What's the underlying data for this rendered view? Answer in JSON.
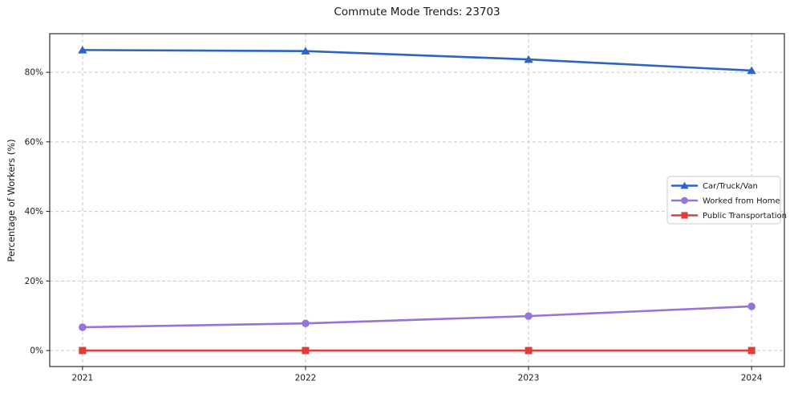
{
  "chart_data": {
    "type": "line",
    "title": "Commute Mode Trends: 23703",
    "xlabel": "",
    "ylabel": "Percentage of Workers (%)",
    "x": [
      2021,
      2022,
      2023,
      2024
    ],
    "x_tick_labels": [
      "2021",
      "2022",
      "2023",
      "2024"
    ],
    "y_ticks": [
      0,
      20,
      40,
      60,
      80
    ],
    "y_tick_labels": [
      "0%",
      "20%",
      "40%",
      "60%",
      "80%"
    ],
    "xlim": [
      2020.853,
      2024.147
    ],
    "ylim": [
      -4.6,
      91.1
    ],
    "grid": true,
    "grid_style": "dashed",
    "legend_position": "center-right",
    "background_color": "#ffffff",
    "spine_color": "#1a1a1a",
    "grid_color": "#cacaca",
    "series": [
      {
        "name": "Car/Truck/Van",
        "color": "#2c65c3",
        "marker": "triangle",
        "values": [
          86.4,
          86.1,
          83.7,
          80.5
        ]
      },
      {
        "name": "Worked from Home",
        "color": "#9674d9",
        "marker": "circle",
        "values": [
          6.7,
          7.8,
          9.9,
          12.7
        ]
      },
      {
        "name": "Public Transportation",
        "color": "#e33c3c",
        "marker": "square",
        "values": [
          0.0,
          0.0,
          0.0,
          0.0
        ]
      }
    ]
  }
}
